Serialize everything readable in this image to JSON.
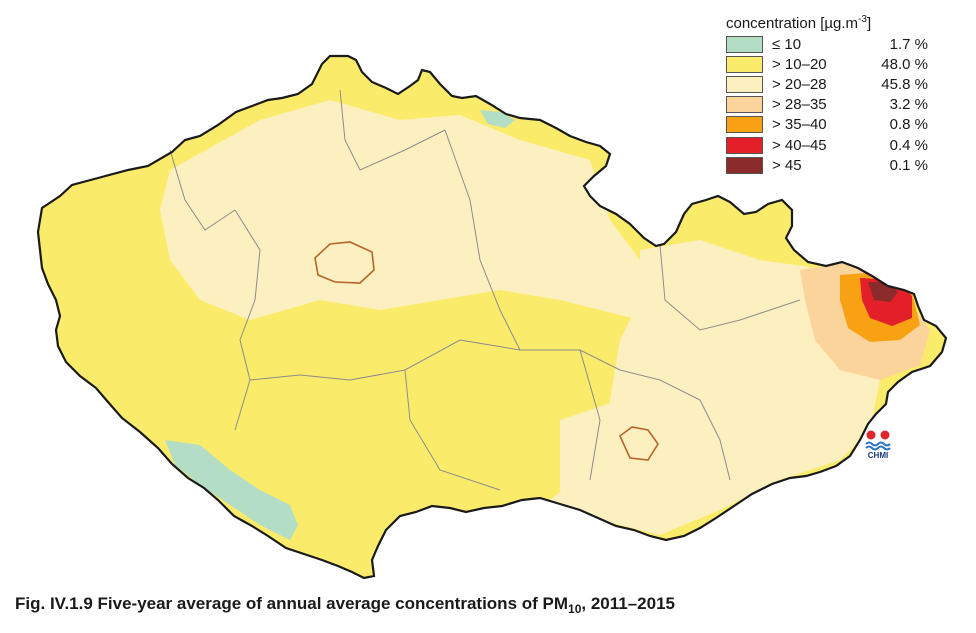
{
  "legend": {
    "title": "concentration [µg.m",
    "title_exp": "-3",
    "title_end": "]",
    "classes": [
      {
        "range": "≤ 10",
        "share": "1.7 %",
        "color": "#b3ddc4"
      },
      {
        "range": "> 10–20",
        "share": "48.0 %",
        "color": "#fbeb6b"
      },
      {
        "range": "> 20–28",
        "share": "45.8 %",
        "color": "#fdf0c0"
      },
      {
        "range": "> 28–35",
        "share": "3.2 %",
        "color": "#fad49a"
      },
      {
        "range": "> 35–40",
        "share": "0.8 %",
        "color": "#f7a113"
      },
      {
        "range": "> 40–45",
        "share": "0.4 %",
        "color": "#e3202a"
      },
      {
        "range": "> 45",
        "share": "0.1 %",
        "color": "#8b2a2b"
      }
    ]
  },
  "logo": {
    "text": "CHMI"
  },
  "caption": {
    "main": "Fig. IV.1.9  Five-year average of annual average concentrations of PM",
    "sub": "10",
    "end": ", 2011–2015"
  }
}
